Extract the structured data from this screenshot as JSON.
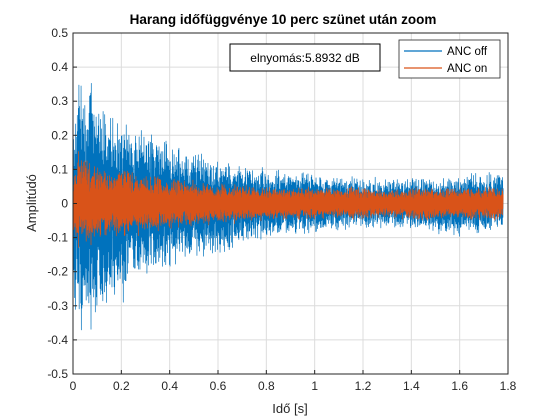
{
  "chart_data": {
    "type": "line",
    "title": "Harang időfüggvénye 10 perc szünet után zoom",
    "xlabel": "Idő [s]",
    "ylabel": "Amplitúdó",
    "xlim": [
      0,
      1.8
    ],
    "ylim": [
      -0.5,
      0.5
    ],
    "x_ticks": [
      0,
      0.2,
      0.4,
      0.6,
      0.8,
      1,
      1.2,
      1.4,
      1.6,
      1.8
    ],
    "x_tick_labels": [
      "0",
      "0.2",
      "0.4",
      "0.6",
      "0.8",
      "1",
      "1.2",
      "1.4",
      "1.6",
      "1.8"
    ],
    "y_ticks": [
      -0.5,
      -0.4,
      -0.3,
      -0.2,
      -0.1,
      0,
      0.1,
      0.2,
      0.3,
      0.4,
      0.5
    ],
    "y_tick_labels": [
      "-0.5",
      "-0.4",
      "-0.3",
      "-0.2",
      "-0.1",
      "0",
      "0.1",
      "0.2",
      "0.3",
      "0.4",
      "0.5"
    ],
    "grid": true,
    "legend_position": "top-right",
    "annotation": "elnyomás:5.8932 dB",
    "series": [
      {
        "name": "ANC off",
        "color": "#0072BD",
        "envelope": {
          "t": [
            0,
            0.02,
            0.05,
            0.08,
            0.1,
            0.15,
            0.2,
            0.25,
            0.3,
            0.4,
            0.5,
            0.6,
            0.7,
            0.8,
            0.9,
            1.0,
            1.1,
            1.2,
            1.3,
            1.4,
            1.5,
            1.6,
            1.7,
            1.78
          ],
          "upper": [
            0.2,
            0.4,
            0.38,
            0.4,
            0.35,
            0.3,
            0.27,
            0.24,
            0.22,
            0.19,
            0.16,
            0.13,
            0.12,
            0.11,
            0.1,
            0.09,
            0.09,
            0.08,
            0.08,
            0.08,
            0.08,
            0.09,
            0.1,
            0.09
          ],
          "lower": [
            -0.25,
            -0.44,
            -0.42,
            -0.38,
            -0.35,
            -0.33,
            -0.31,
            -0.27,
            -0.24,
            -0.21,
            -0.18,
            -0.16,
            -0.13,
            -0.11,
            -0.1,
            -0.09,
            -0.08,
            -0.08,
            -0.07,
            -0.08,
            -0.09,
            -0.1,
            -0.09,
            -0.08
          ]
        }
      },
      {
        "name": "ANC on",
        "color": "#D95319",
        "envelope": {
          "t": [
            0,
            0.02,
            0.05,
            0.1,
            0.15,
            0.2,
            0.22,
            0.25,
            0.3,
            0.4,
            0.5,
            0.6,
            0.7,
            0.8,
            0.9,
            1.0,
            1.1,
            1.2,
            1.3,
            1.4,
            1.5,
            1.6,
            1.7,
            1.78
          ],
          "upper": [
            0.08,
            0.16,
            0.15,
            0.12,
            0.1,
            0.11,
            0.14,
            0.1,
            0.09,
            0.08,
            0.07,
            0.06,
            0.06,
            0.05,
            0.05,
            0.05,
            0.05,
            0.05,
            0.04,
            0.05,
            0.05,
            0.05,
            0.05,
            0.05
          ],
          "lower": [
            -0.08,
            -0.15,
            -0.14,
            -0.12,
            -0.1,
            -0.1,
            -0.11,
            -0.1,
            -0.09,
            -0.08,
            -0.07,
            -0.06,
            -0.06,
            -0.05,
            -0.05,
            -0.05,
            -0.05,
            -0.05,
            -0.04,
            -0.05,
            -0.05,
            -0.05,
            -0.05,
            -0.05
          ]
        }
      }
    ]
  }
}
